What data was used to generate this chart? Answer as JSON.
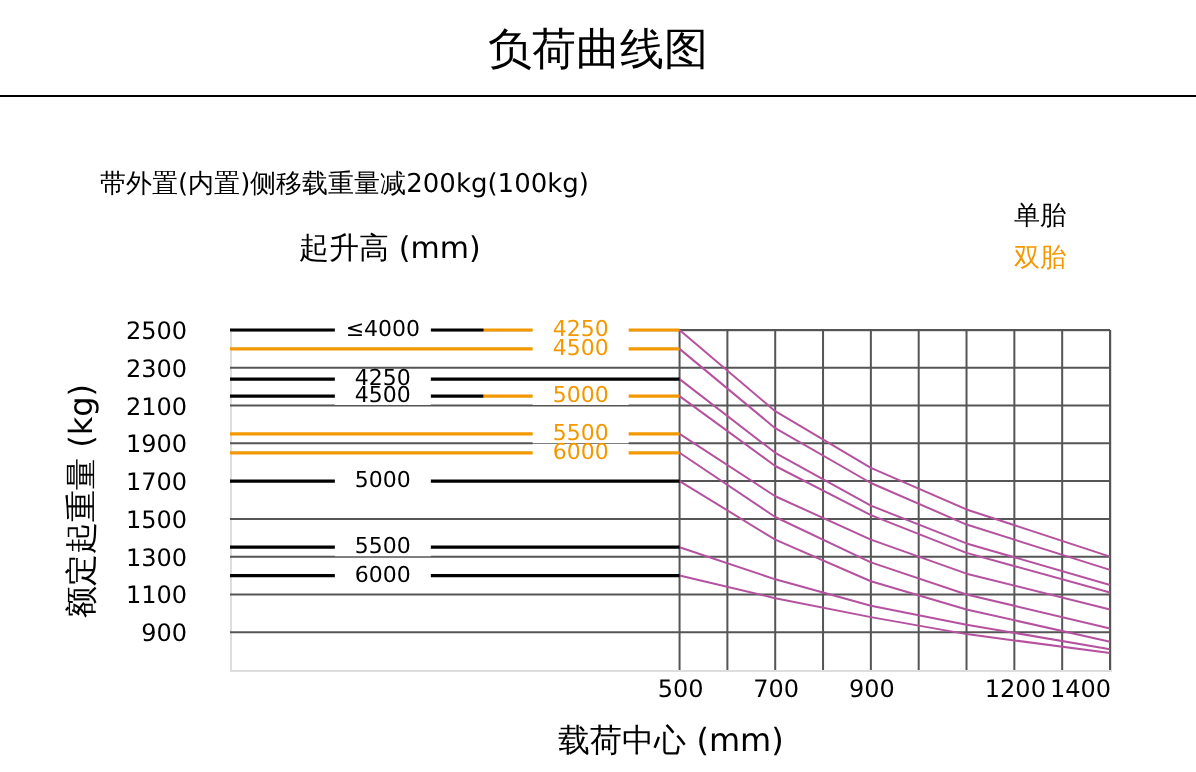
{
  "chart_data": {
    "type": "line",
    "title": "负荷曲线图",
    "subtitle": "带外置(内置)侧移载重量减200kg(100kg)",
    "xlabel": "载荷中心 (mm)",
    "ylabel": "额定起重量 (kg)",
    "legend_title": "起升高 (mm)",
    "annotations": [
      "单胎",
      "双胎"
    ],
    "xlim": [
      -440,
      1400
    ],
    "ylim": [
      700,
      2500
    ],
    "xticks": [
      500,
      {
        "value": 600,
        "label": null
      },
      700,
      {
        "value": 800,
        "label": null
      },
      900,
      {
        "value": 1000,
        "label": null
      },
      {
        "value": 1100,
        "label": null
      },
      1200,
      {
        "value": 1300,
        "label": null
      },
      1400
    ],
    "yticks": [
      900,
      1100,
      1300,
      1500,
      1700,
      1900,
      2100,
      2300,
      2500
    ],
    "grid": true,
    "x": [
      500,
      700,
      900,
      1100,
      1400
    ],
    "series": [
      {
        "color": "#b5529f",
        "values": [
          2500,
          2070,
          1770,
          1550,
          1300
        ]
      },
      {
        "color": "#b5529f",
        "values": [
          2400,
          1980,
          1690,
          1470,
          1230
        ]
      },
      {
        "color": "#b5529f",
        "values": [
          2240,
          1850,
          1570,
          1370,
          1150
        ]
      },
      {
        "color": "#b5529f",
        "values": [
          2150,
          1780,
          1520,
          1320,
          1110
        ]
      },
      {
        "color": "#b5529f",
        "values": [
          1950,
          1620,
          1390,
          1210,
          1020
        ]
      },
      {
        "color": "#b5529f",
        "values": [
          1850,
          1510,
          1270,
          1100,
          920
        ]
      },
      {
        "color": "#b5529f",
        "values": [
          1700,
          1390,
          1170,
          1020,
          850
        ]
      },
      {
        "color": "#b5529f",
        "values": [
          1350,
          1180,
          1040,
          940,
          810
        ]
      },
      {
        "color": "#b5529f",
        "values": [
          1200,
          1080,
          980,
          890,
          790
        ]
      },
      {
        "name": "4250",
        "color": "#f39800",
        "x": [
          90,
          500
        ],
        "values": [
          2500,
          2500
        ]
      },
      {
        "name": "4500",
        "color": "#f39800",
        "x": [
          -440,
          500
        ],
        "values": [
          2400,
          2400
        ]
      },
      {
        "name": "5000",
        "color": "#f39800",
        "x": [
          90,
          500
        ],
        "values": [
          2150,
          2150
        ]
      },
      {
        "name": "5500",
        "color": "#f39800",
        "x": [
          -440,
          500
        ],
        "values": [
          1950,
          1950
        ]
      },
      {
        "name": "6000",
        "color": "#f39800",
        "x": [
          -440,
          500
        ],
        "values": [
          1850,
          1850
        ]
      },
      {
        "name": "≤4000",
        "color": "#000000",
        "x": [
          -440,
          90
        ],
        "values": [
          2500,
          2500
        ]
      },
      {
        "name": "4250",
        "color": "#000000",
        "x": [
          -440,
          500
        ],
        "values": [
          2240,
          2240
        ]
      },
      {
        "name": "4500",
        "color": "#000000",
        "x": [
          -440,
          90
        ],
        "values": [
          2150,
          2150
        ]
      },
      {
        "name": "5000",
        "color": "#000000",
        "x": [
          -440,
          500
        ],
        "values": [
          1700,
          1700
        ]
      },
      {
        "name": "5500",
        "color": "#000000",
        "x": [
          -440,
          500
        ],
        "values": [
          1350,
          1350
        ]
      },
      {
        "name": "6000",
        "color": "#000000",
        "x": [
          -440,
          500
        ],
        "values": [
          1200,
          1200
        ]
      }
    ]
  }
}
